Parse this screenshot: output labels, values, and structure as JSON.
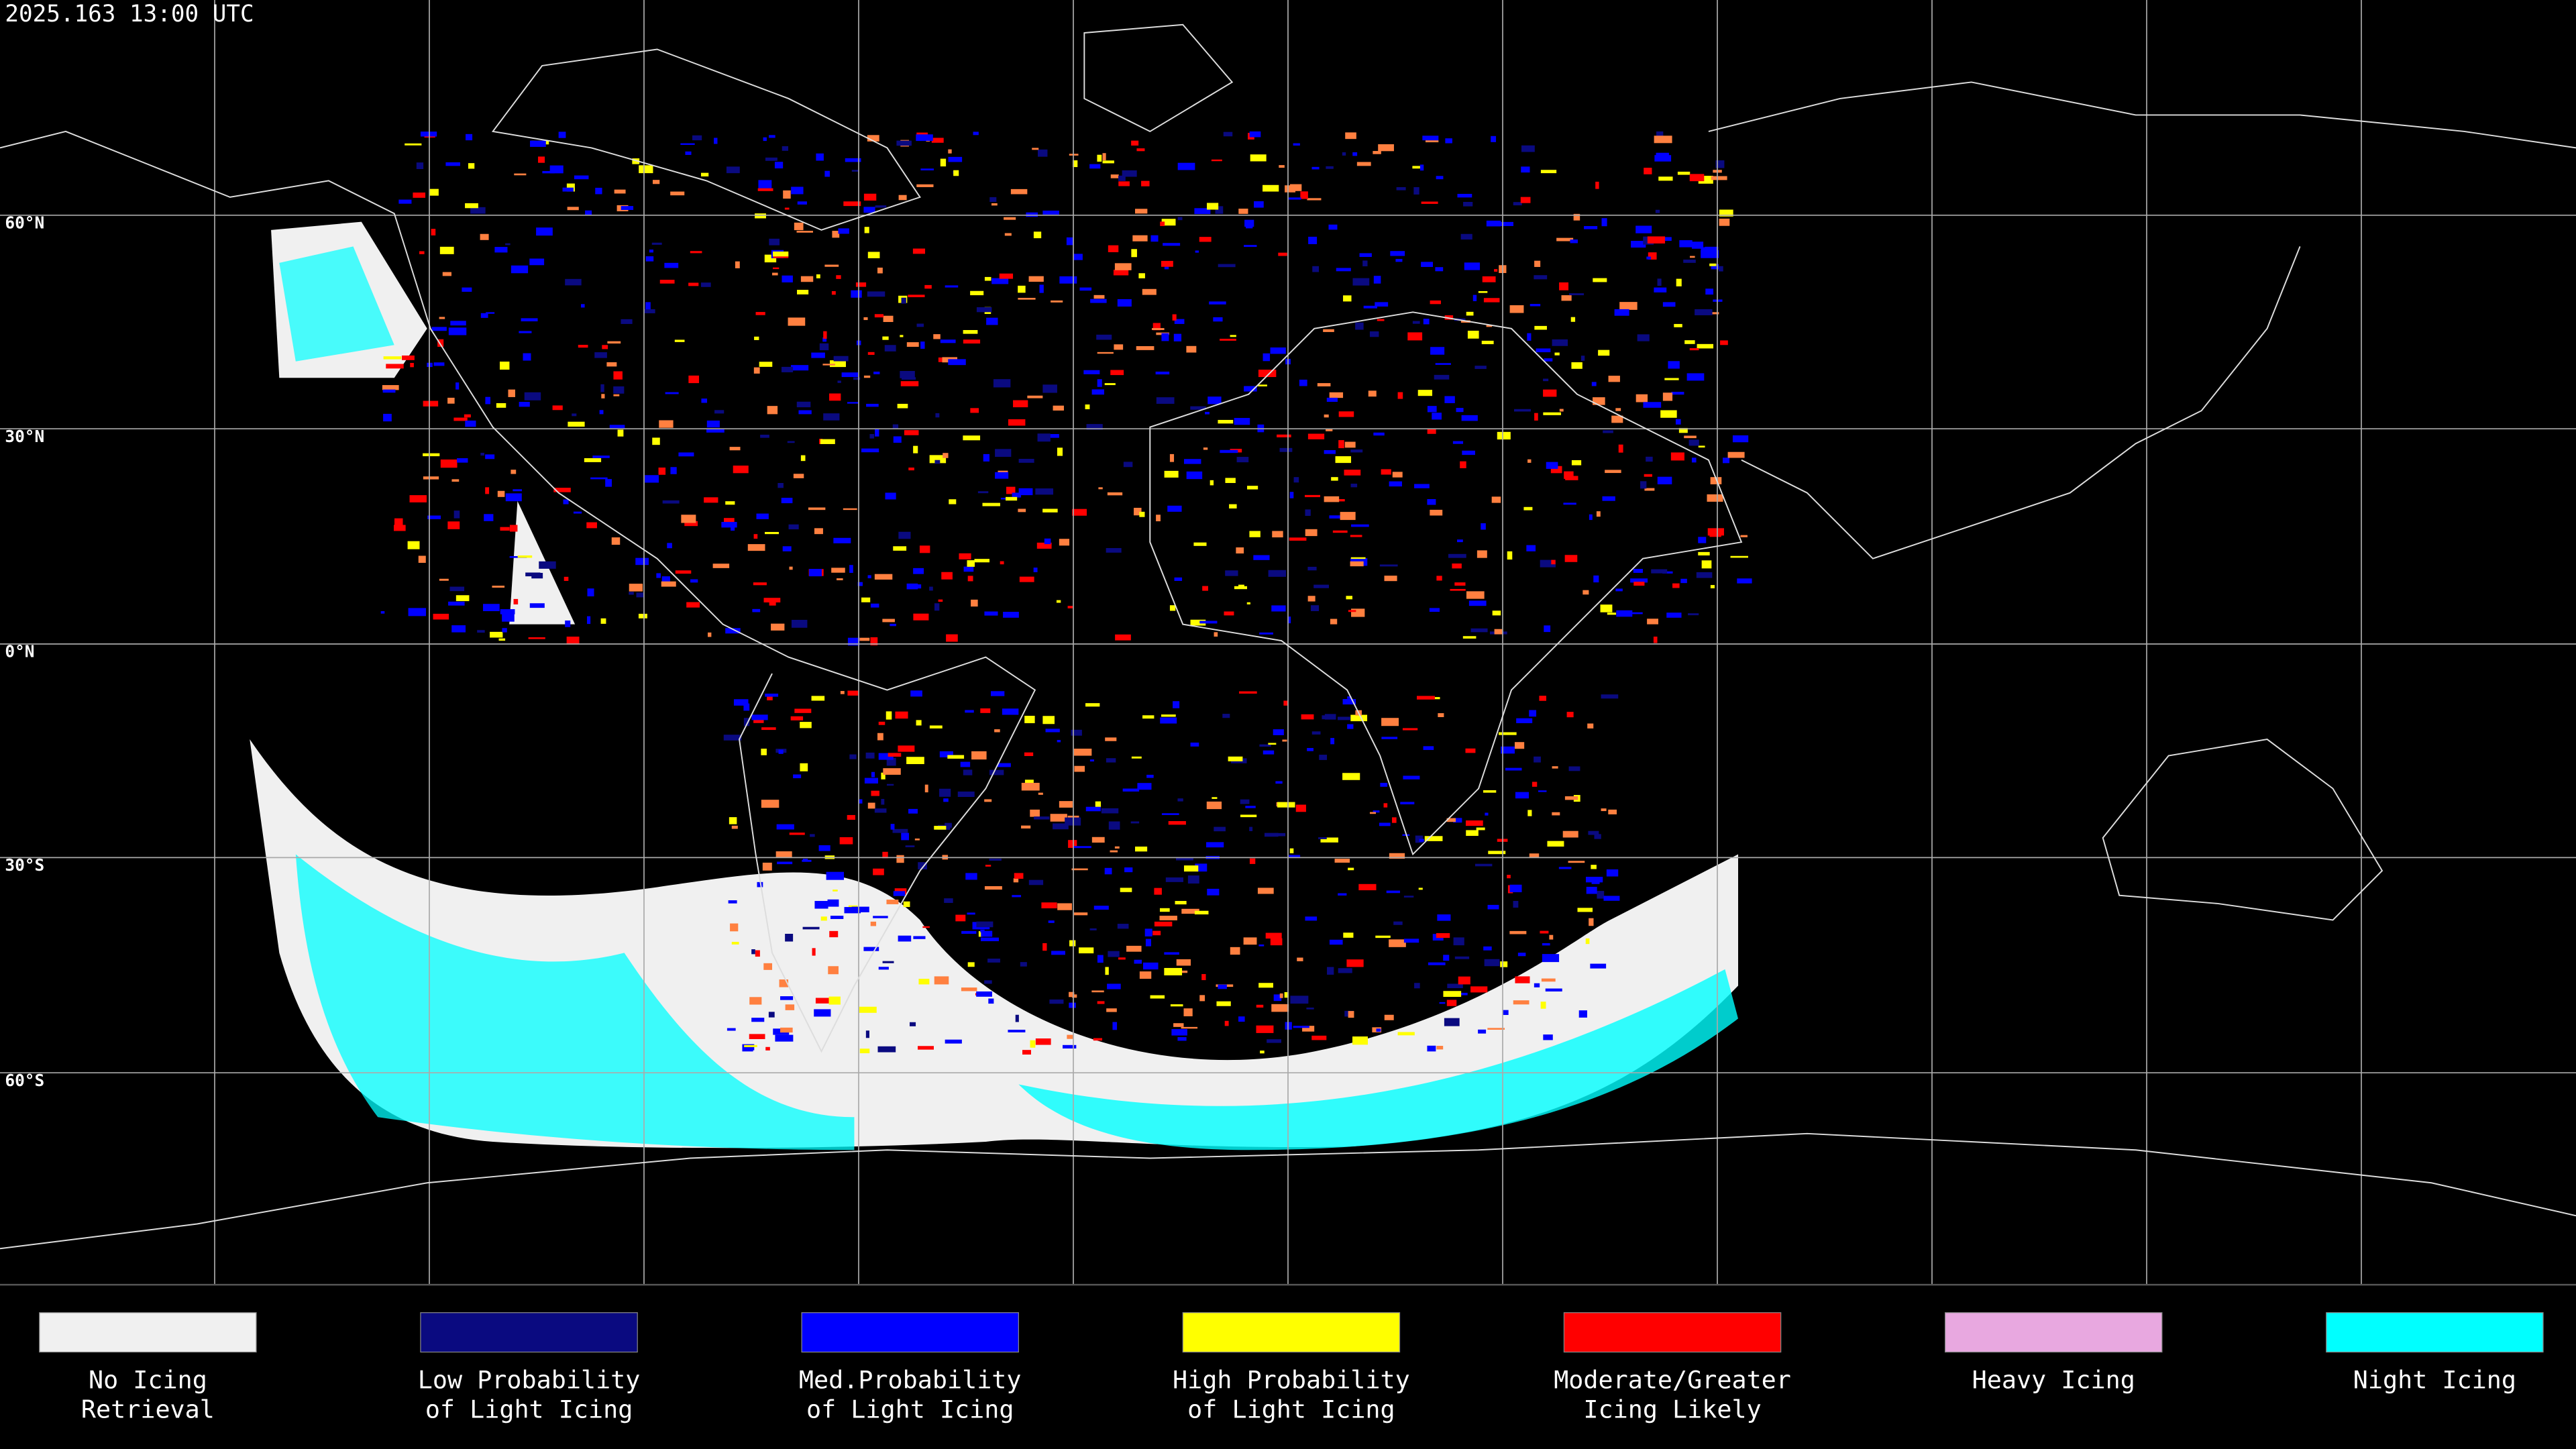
{
  "timestamp": "2025.163 13:00 UTC",
  "latitude_labels": [
    "60°N",
    "30°N",
    "0°N",
    "30°S",
    "60°S"
  ],
  "legend": [
    {
      "color": "#f0f0f0",
      "label": [
        "No Icing",
        "Retrieval"
      ]
    },
    {
      "color": "#0a0a80",
      "label": [
        "Low Probability",
        "of Light Icing"
      ]
    },
    {
      "color": "#0000ff",
      "label": [
        "Med.Probability",
        "of Light Icing"
      ]
    },
    {
      "color": "#ffff00",
      "label": [
        "High Probability",
        "of Light Icing"
      ]
    },
    {
      "color": "#ff0000",
      "label": [
        "Moderate/Greater",
        "Icing Likely"
      ]
    },
    {
      "color": "#e8a8e0",
      "label": [
        "Heavy Icing"
      ]
    },
    {
      "color": "#00ffff",
      "label": [
        "Night Icing"
      ]
    }
  ]
}
